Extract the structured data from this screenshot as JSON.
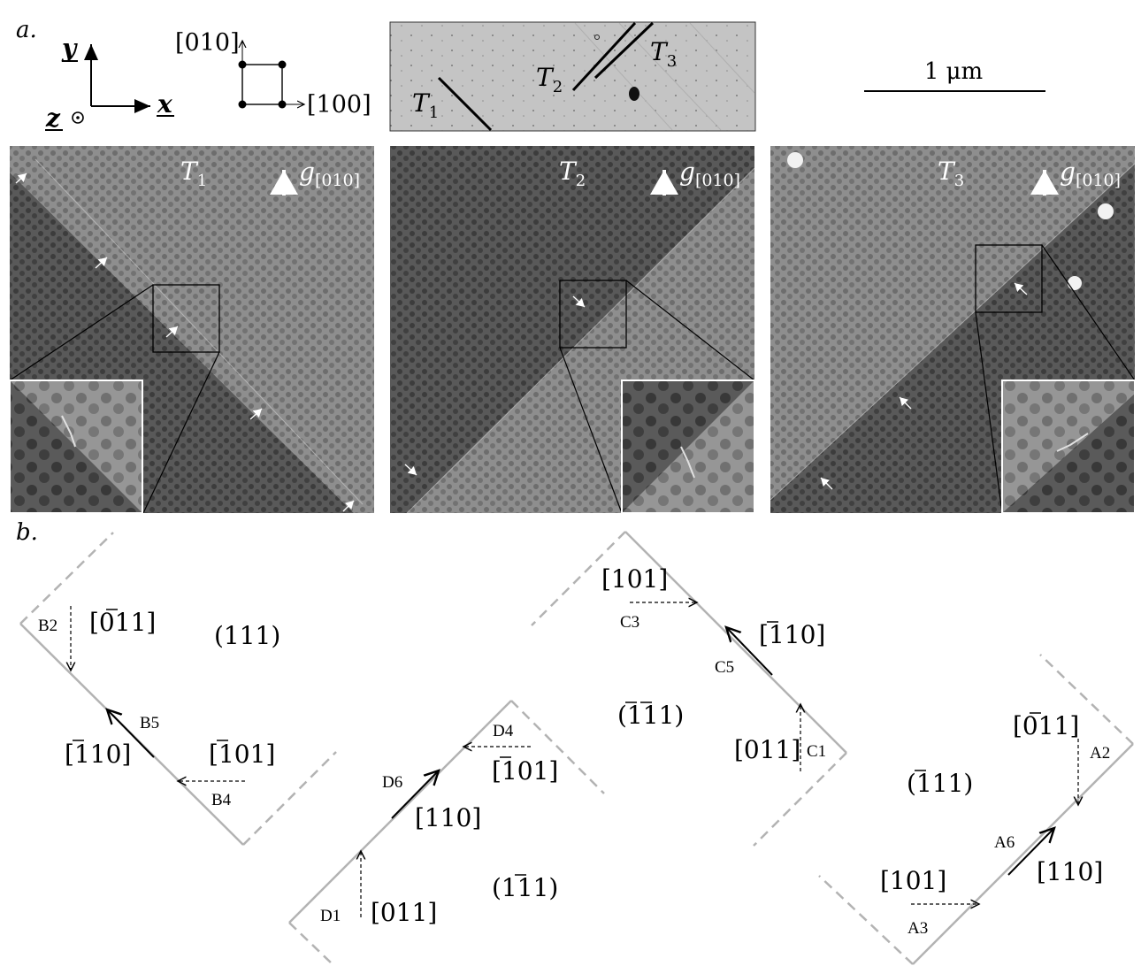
{
  "figure": {
    "panel_a_label": "a.",
    "panel_b_label": "b.",
    "axes": {
      "y": "y",
      "x": "x",
      "z": "z"
    },
    "crystal": {
      "dir_up": "[010]",
      "dir_right": "[100]"
    },
    "overview": {
      "traces": [
        {
          "sym": "T",
          "sub": "1"
        },
        {
          "sym": "T",
          "sub": "2"
        },
        {
          "sym": "T",
          "sub": "3"
        }
      ]
    },
    "scale_bar": {
      "label": "1 μm"
    },
    "micrographs": [
      {
        "title_sym": "T",
        "title_sub": "1",
        "g_sym": "g",
        "g_sub": "[010]"
      },
      {
        "title_sym": "T",
        "title_sub": "2",
        "g_sym": "g",
        "g_sub": "[010]"
      },
      {
        "title_sym": "T",
        "title_sub": "3",
        "g_sym": "g",
        "g_sub": "[010]"
      }
    ],
    "schematics": {
      "B": {
        "plane": "(111)",
        "d1": "[0",
        "d1b": "1",
        "d1c": "1]",
        "d2": "[",
        "d2b": "1",
        "d2c": "10]",
        "d3": "[",
        "d3b": "1",
        "d3c": "01]",
        "s1": "B2",
        "s2": "B5",
        "s3": "B4"
      },
      "D": {
        "plane": "(1",
        "planeb": "1",
        "planec": "1)",
        "d1": "[110]",
        "d2": "[",
        "d2b": "1",
        "d2c": "01]",
        "d3": "[011]",
        "s1": "D6",
        "s2": "D4",
        "s3": "D1"
      },
      "C": {
        "plane": "(",
        "planeb": "11",
        "planec": "1)",
        "d1": "[101]",
        "d2": "[",
        "d2b": "1",
        "d2c": "10]",
        "d3": "[011]",
        "s1": "C3",
        "s2": "C5",
        "s3": "C1"
      },
      "A": {
        "plane": "(",
        "planeb": "1",
        "planec": "11)",
        "d1": "[0",
        "d1b": "1",
        "d1c": "1]",
        "d2": "[110]",
        "d3": "[101]",
        "s1": "A2",
        "s2": "A6",
        "s3": "A3"
      }
    },
    "colors": {
      "boundary": "#b3b3b3",
      "micrograph_light": "#8a8a8a",
      "micrograph_dark": "#4a4a4a"
    }
  }
}
